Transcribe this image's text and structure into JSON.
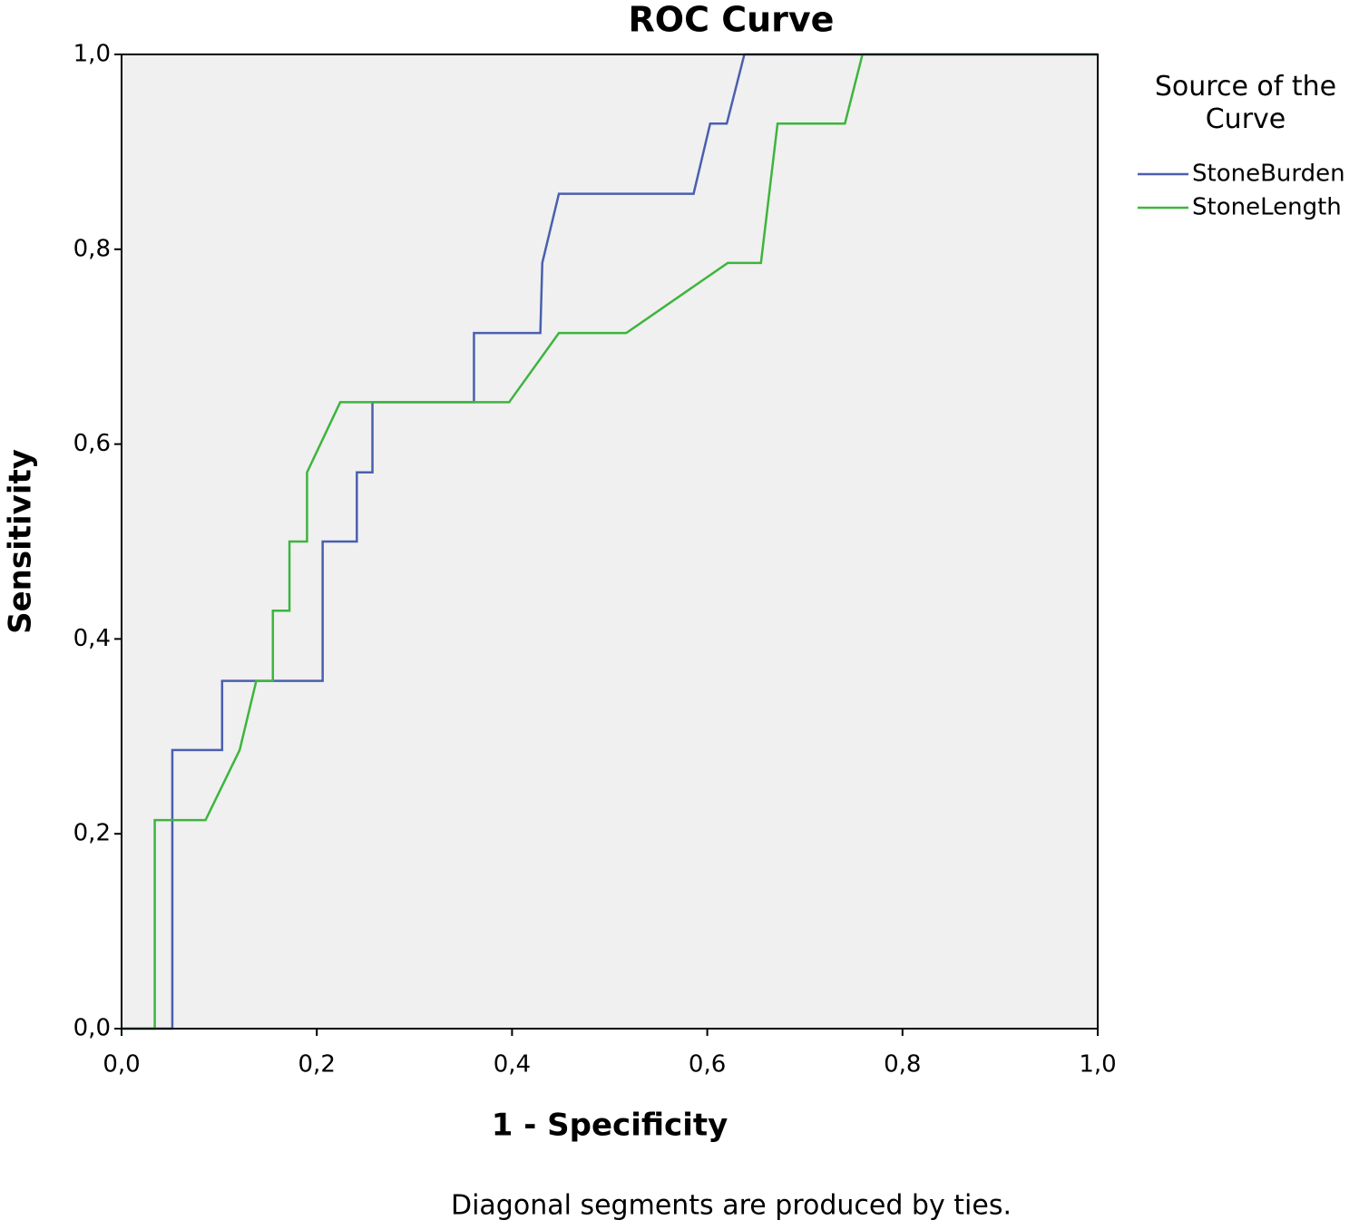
{
  "chart_data": {
    "type": "line",
    "title": "ROC Curve",
    "x_label": "1 - Specificity",
    "y_label": "Sensitivity",
    "footnote": "Diagonal segments are produced by ties.",
    "legend_title": "Source of the Curve",
    "legend_position": "right",
    "grid": false,
    "background": "#f0f0f0",
    "xlim": [
      0,
      1
    ],
    "ylim": [
      0,
      1
    ],
    "xticks": [
      {
        "value": 0,
        "label": "0,0"
      },
      {
        "value": 0.2,
        "label": "0,2"
      },
      {
        "value": 0.4,
        "label": "0,4"
      },
      {
        "value": 0.6,
        "label": "0,6"
      },
      {
        "value": 0.8,
        "label": "0,8"
      },
      {
        "value": 1,
        "label": "1,0"
      }
    ],
    "yticks": [
      {
        "value": 0,
        "label": "0,0"
      },
      {
        "value": 0.2,
        "label": "0,2"
      },
      {
        "value": 0.4,
        "label": "0,4"
      },
      {
        "value": 0.6,
        "label": "0,6"
      },
      {
        "value": 0.8,
        "label": "0,8"
      },
      {
        "value": 1,
        "label": "1,0"
      }
    ],
    "series": [
      {
        "name": "StoneBurden",
        "color": "#4a5fb0",
        "x": [
          0,
          0.052,
          0.052,
          0.103,
          0.103,
          0.206,
          0.206,
          0.241,
          0.241,
          0.257,
          0.257,
          0.361,
          0.361,
          0.429,
          0.431,
          0.448,
          0.586,
          0.603,
          0.62,
          0.638,
          1
        ],
        "values": [
          0,
          0,
          0.286,
          0.286,
          0.357,
          0.357,
          0.5,
          0.5,
          0.571,
          0.571,
          0.643,
          0.643,
          0.714,
          0.714,
          0.786,
          0.857,
          0.857,
          0.929,
          0.929,
          1,
          1
        ]
      },
      {
        "name": "StoneLength",
        "color": "#3db53d",
        "x": [
          0,
          0.034,
          0.034,
          0.086,
          0.121,
          0.138,
          0.155,
          0.155,
          0.172,
          0.172,
          0.19,
          0.19,
          0.224,
          0.397,
          0.448,
          0.517,
          0.621,
          0.655,
          0.672,
          0.741,
          0.759,
          1
        ],
        "values": [
          0,
          0,
          0.214,
          0.214,
          0.286,
          0.357,
          0.357,
          0.429,
          0.429,
          0.5,
          0.5,
          0.571,
          0.643,
          0.643,
          0.714,
          0.714,
          0.786,
          0.786,
          0.929,
          0.929,
          1,
          1
        ]
      }
    ]
  }
}
